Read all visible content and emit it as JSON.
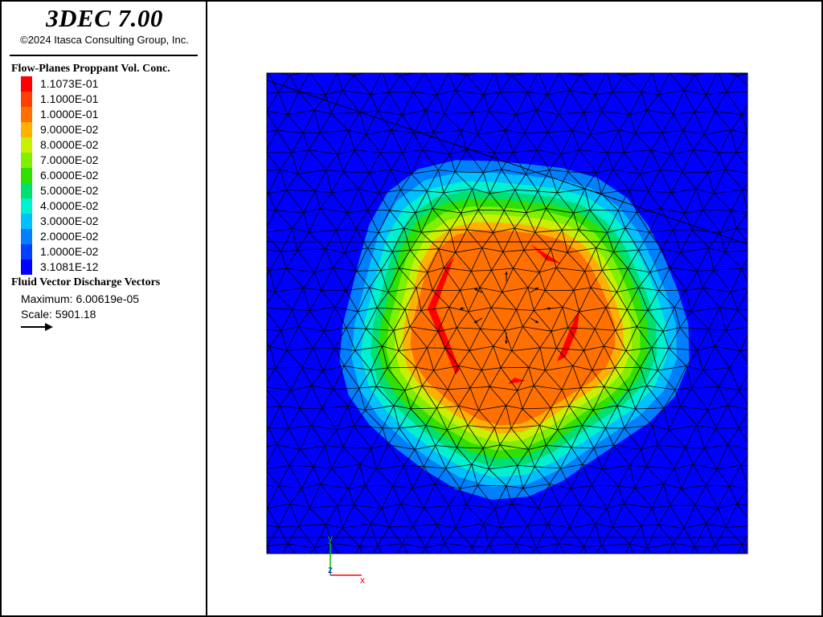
{
  "app": {
    "title": "3DEC 7.00",
    "copyright": "©2024 Itasca Consulting Group, Inc."
  },
  "legend": {
    "heading": "Flow-Planes Proppant Vol. Conc.",
    "items": [
      {
        "value": "1.1073E-01",
        "color": "#ff0000"
      },
      {
        "value": "1.1000E-01",
        "color": "#ff4000"
      },
      {
        "value": "1.0000E-01",
        "color": "#ff7000"
      },
      {
        "value": "9.0000E-02",
        "color": "#ffb000"
      },
      {
        "value": "8.0000E-02",
        "color": "#c8f000"
      },
      {
        "value": "7.0000E-02",
        "color": "#80f000"
      },
      {
        "value": "6.0000E-02",
        "color": "#30e000"
      },
      {
        "value": "5.0000E-02",
        "color": "#00e070"
      },
      {
        "value": "4.0000E-02",
        "color": "#00f0d0"
      },
      {
        "value": "3.0000E-02",
        "color": "#00c0ff"
      },
      {
        "value": "2.0000E-02",
        "color": "#0080ff"
      },
      {
        "value": "1.0000E-02",
        "color": "#0040ff"
      },
      {
        "value": "3.1081E-12",
        "color": "#0000ff"
      }
    ]
  },
  "vectors": {
    "heading": "Fluid Vector Discharge Vectors",
    "maximum": "Maximum: 6.00619e-05",
    "scale": "Scale: 5901.18"
  },
  "axes": {
    "y_label": "y",
    "z_label": "z",
    "x_label": "x",
    "y_color": "#00c000",
    "z_color": "#0000ff",
    "x_color": "#ff0000"
  },
  "colors": {
    "background": "#0000ff",
    "mesh_line": "#000000"
  }
}
